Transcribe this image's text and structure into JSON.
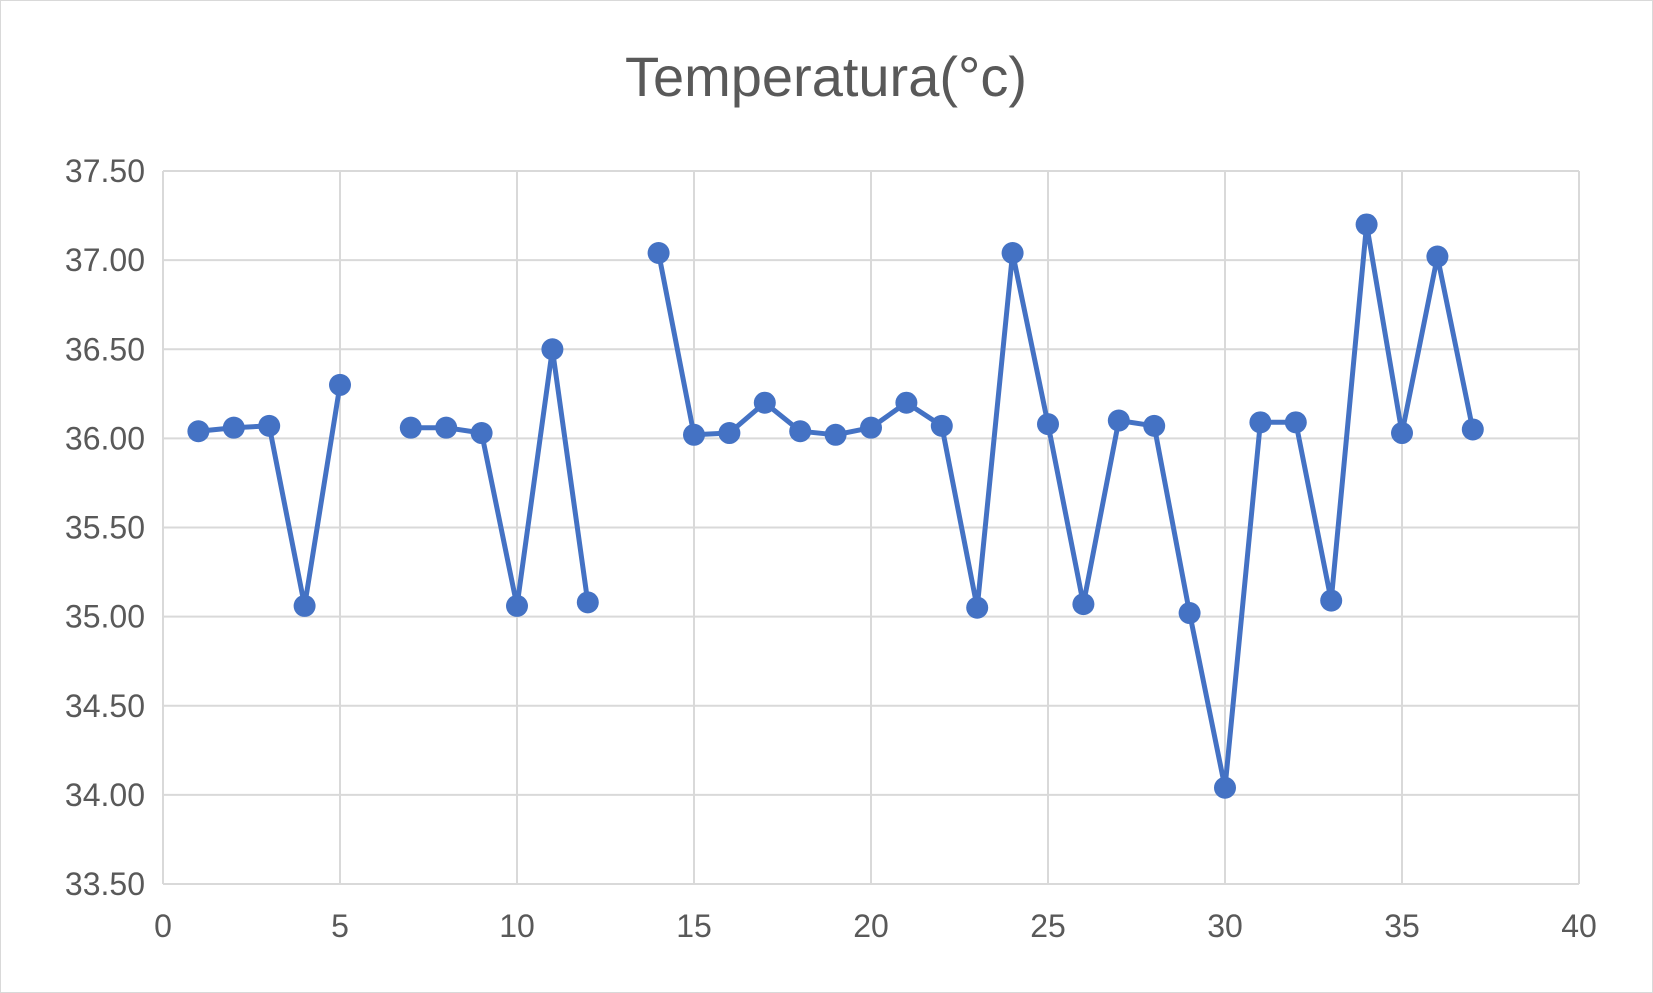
{
  "chart_data": {
    "type": "scatter",
    "title": "Temperatura(°c)",
    "xlabel": "",
    "ylabel": "",
    "xlim": [
      0,
      40
    ],
    "ylim": [
      33.5,
      37.5
    ],
    "x_ticks": [
      "0",
      "5",
      "10",
      "15",
      "20",
      "25",
      "30",
      "35",
      "40"
    ],
    "y_ticks": [
      "33.50",
      "34.00",
      "34.50",
      "35.00",
      "35.50",
      "36.00",
      "36.50",
      "37.00",
      "37.50"
    ],
    "grid": true,
    "legend": "none",
    "line_color": "#4472c4",
    "series": [
      {
        "points": [
          [
            1,
            36.04
          ],
          [
            2,
            36.06
          ],
          [
            3,
            36.07
          ],
          [
            4,
            35.06
          ],
          [
            5,
            36.3
          ],
          [
            6,
            null
          ],
          [
            7,
            36.06
          ],
          [
            8,
            36.06
          ],
          [
            9,
            36.03
          ],
          [
            10,
            35.06
          ],
          [
            11,
            36.5
          ],
          [
            12,
            35.08
          ],
          [
            13,
            null
          ],
          [
            14,
            37.04
          ],
          [
            15,
            36.02
          ],
          [
            16,
            36.03
          ],
          [
            17,
            36.2
          ],
          [
            18,
            36.04
          ],
          [
            19,
            36.02
          ],
          [
            20,
            36.06
          ],
          [
            21,
            36.2
          ],
          [
            22,
            36.07
          ],
          [
            23,
            35.05
          ],
          [
            24,
            37.04
          ],
          [
            25,
            36.08
          ],
          [
            26,
            35.07
          ],
          [
            27,
            36.1
          ],
          [
            28,
            36.07
          ],
          [
            29,
            35.02
          ],
          [
            30,
            34.04
          ],
          [
            31,
            36.09
          ],
          [
            32,
            36.09
          ],
          [
            33,
            35.09
          ],
          [
            34,
            37.2
          ],
          [
            35,
            36.03
          ],
          [
            36,
            37.02
          ],
          [
            37,
            36.05
          ]
        ]
      }
    ]
  }
}
